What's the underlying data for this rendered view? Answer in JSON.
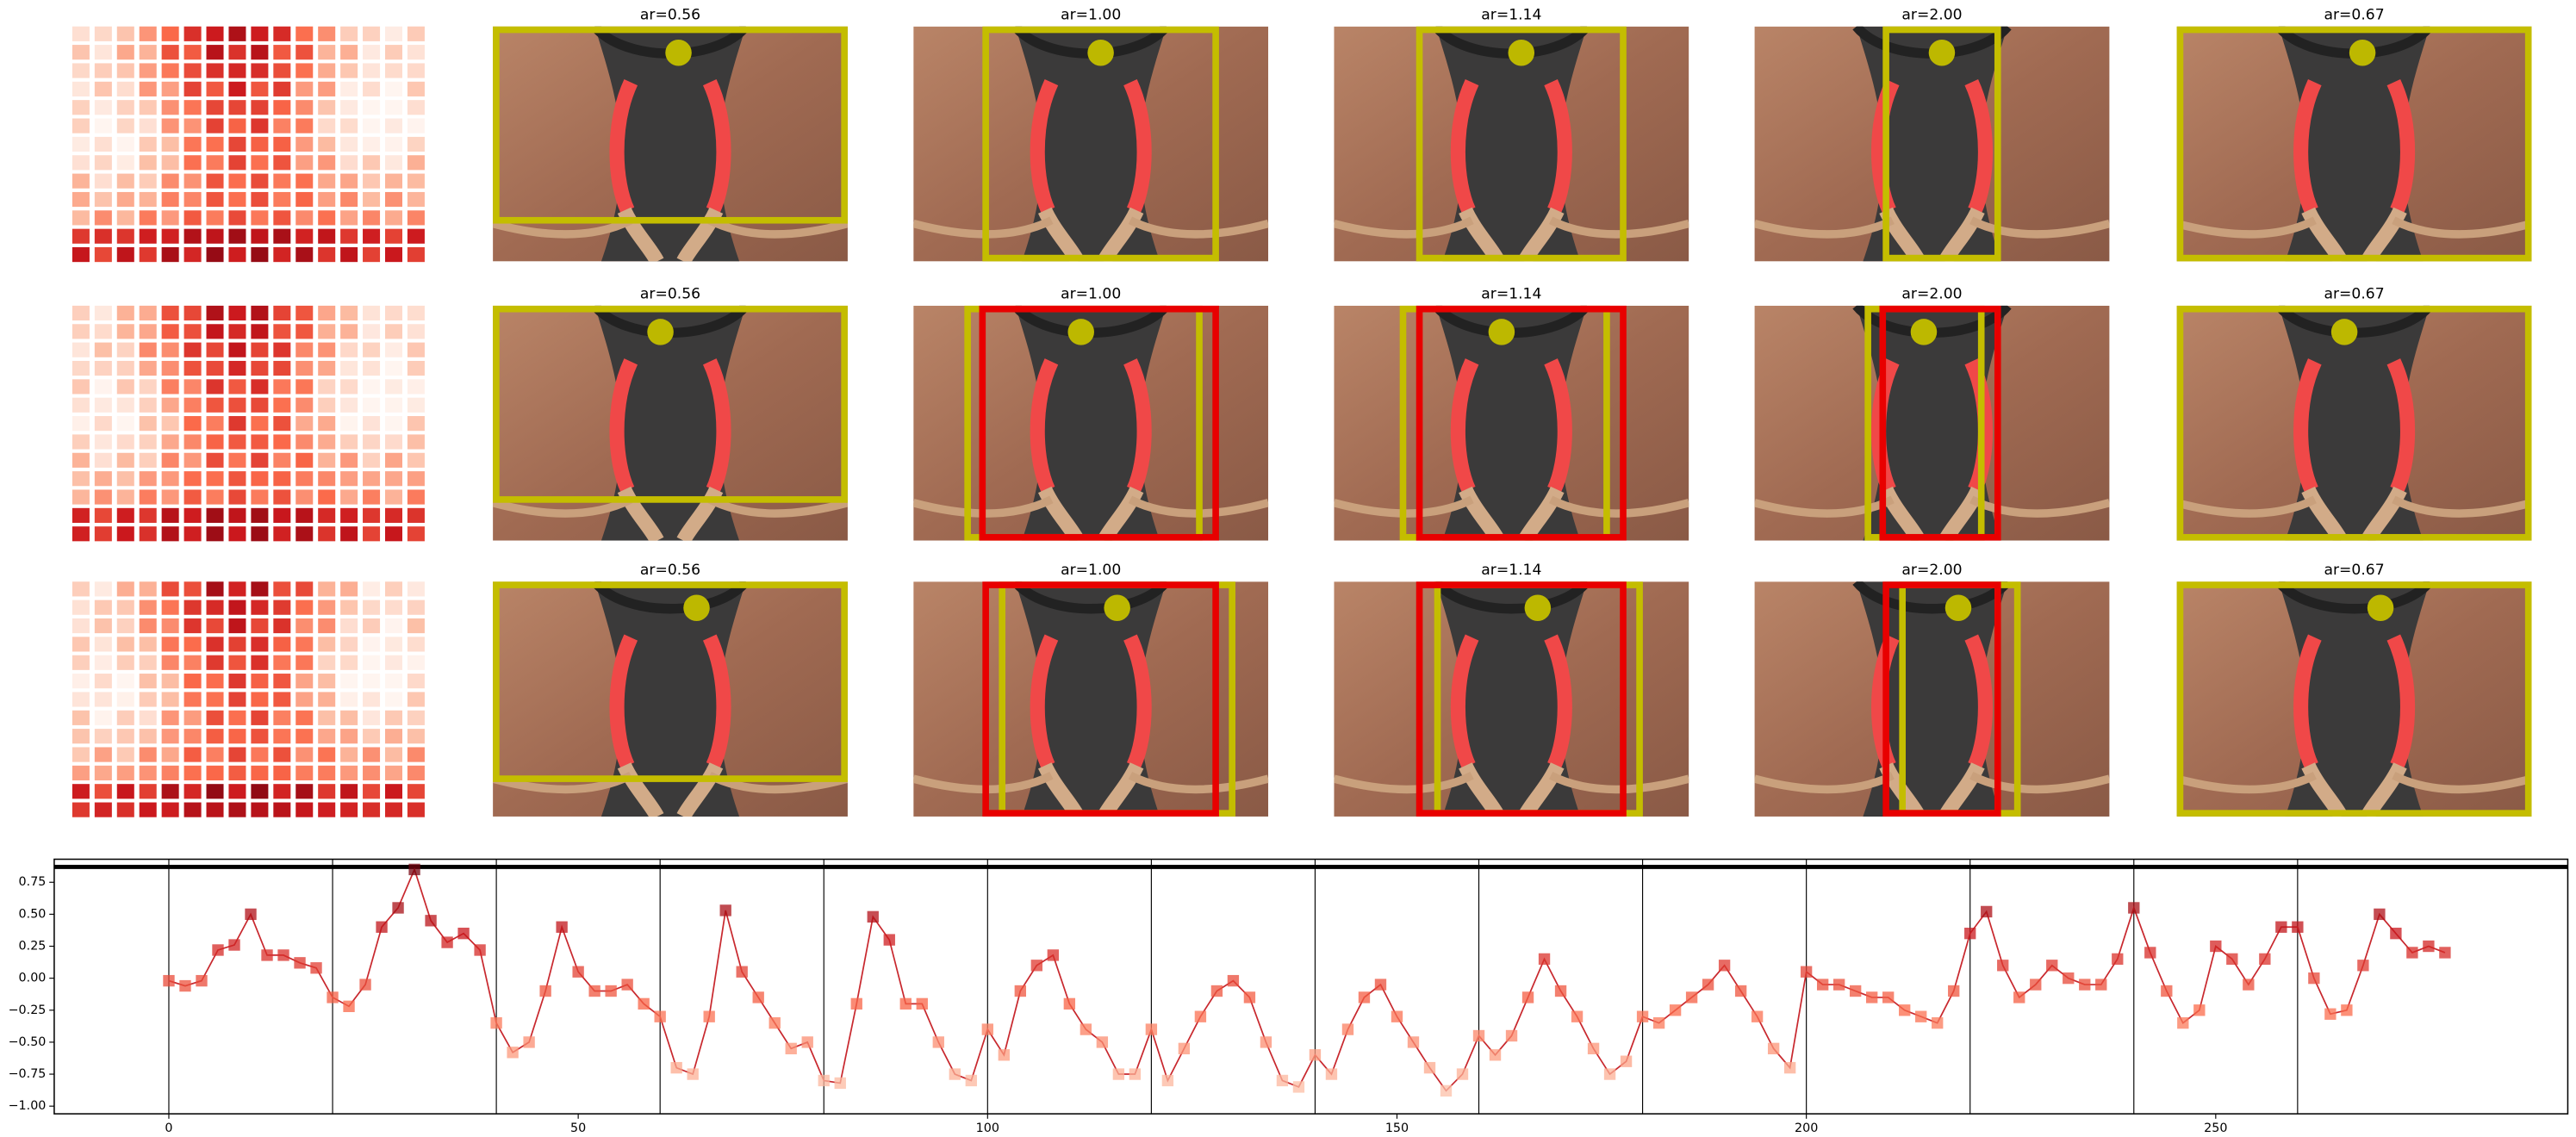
{
  "panels": {
    "titles": [
      [
        "ar=0.56",
        "ar=1.00",
        "ar=1.14",
        "ar=2.00",
        "ar=0.67"
      ],
      [
        "ar=0.56",
        "ar=1.00",
        "ar=1.14",
        "ar=2.00",
        "ar=0.67"
      ],
      [
        "ar=0.56",
        "ar=1.00",
        "ar=1.14",
        "ar=2.00",
        "ar=0.67"
      ]
    ]
  },
  "chart_data": {
    "type": "line",
    "x": [
      0,
      2,
      4,
      6,
      8,
      10,
      12,
      14,
      16,
      18,
      20,
      22,
      24,
      26,
      28,
      30,
      32,
      34,
      36,
      38,
      40,
      42,
      44,
      46,
      48,
      50,
      52,
      54,
      56,
      58,
      60,
      62,
      64,
      66,
      68,
      70,
      72,
      74,
      76,
      78,
      80,
      82,
      84,
      86,
      88,
      90,
      92,
      94,
      96,
      98,
      100,
      102,
      104,
      106,
      108,
      110,
      112,
      114,
      116,
      118,
      120,
      122,
      124,
      126,
      128,
      130,
      132,
      134,
      136,
      138,
      140,
      142,
      144,
      146,
      148,
      150,
      152,
      154,
      156,
      158,
      160,
      162,
      164,
      166,
      168,
      170,
      172,
      174,
      176,
      178,
      180,
      182,
      184,
      186,
      188,
      190,
      192,
      194,
      196,
      198,
      200,
      202,
      204,
      206,
      208,
      210,
      212,
      214,
      216,
      218,
      220,
      222,
      224,
      226,
      228,
      230,
      232,
      234,
      236,
      238,
      240,
      242,
      244,
      246,
      248,
      250,
      252,
      254,
      256,
      258,
      260,
      262,
      264,
      266,
      268,
      270,
      272,
      274,
      276,
      278
    ],
    "series": [
      {
        "color": "#c8282e",
        "values": [
          -0.02,
          -0.06,
          -0.02,
          0.22,
          0.26,
          0.5,
          0.18,
          0.18,
          0.12,
          0.08,
          -0.15,
          -0.22,
          -0.05,
          0.4,
          0.55,
          0.85,
          0.45,
          0.28,
          0.35,
          0.22,
          -0.35,
          -0.58,
          -0.5,
          -0.1,
          0.4,
          0.05,
          -0.1,
          -0.1,
          -0.05,
          -0.2,
          -0.3,
          -0.7,
          -0.75,
          -0.3,
          0.53,
          0.05,
          -0.15,
          -0.35,
          -0.55,
          -0.5,
          -0.8,
          -0.82,
          -0.2,
          0.48,
          0.3,
          -0.2,
          -0.2,
          -0.5,
          -0.75,
          -0.8,
          -0.4,
          -0.6,
          -0.1,
          0.1,
          0.18,
          -0.2,
          -0.4,
          -0.5,
          -0.75,
          -0.75,
          -0.4,
          -0.8,
          -0.55,
          -0.3,
          -0.1,
          -0.02,
          -0.15,
          -0.5,
          -0.8,
          -0.85,
          -0.6,
          -0.75,
          -0.4,
          -0.15,
          -0.05,
          -0.3,
          -0.5,
          -0.7,
          -0.88,
          -0.75,
          -0.45,
          -0.6,
          -0.45,
          -0.15,
          0.15,
          -0.1,
          -0.3,
          -0.55,
          -0.75,
          -0.65,
          -0.3,
          -0.35,
          -0.25,
          -0.15,
          -0.05,
          0.1,
          -0.1,
          -0.3,
          -0.55,
          -0.7,
          0.05,
          -0.05,
          -0.05,
          -0.1,
          -0.15,
          -0.15,
          -0.25,
          -0.3,
          -0.35,
          -0.1,
          0.35,
          0.52,
          0.1,
          -0.15,
          -0.05,
          0.1,
          0.0,
          -0.05,
          -0.05,
          0.15,
          0.55,
          0.2,
          -0.1,
          -0.35,
          -0.25,
          0.25,
          0.15,
          -0.05,
          0.15,
          0.4,
          0.4,
          0.0,
          -0.28,
          -0.25,
          0.1,
          0.5,
          0.35,
          0.2,
          0.25,
          0.2
        ]
      }
    ],
    "marker_cmap": "Reds",
    "xlim": [
      -14,
      293
    ],
    "ylim": [
      -1.06,
      0.93
    ],
    "xticks": [
      0,
      50,
      100,
      150,
      200,
      250
    ],
    "yticks": [
      {
        "value": -1,
        "label": "−1.00"
      },
      {
        "value": -0.75,
        "label": "−0.75"
      },
      {
        "value": -0.5,
        "label": "−0.50"
      },
      {
        "value": -0.25,
        "label": "−0.25"
      },
      {
        "value": 0,
        "label": "0.00"
      },
      0.25,
      {
        "value": 0.5,
        "label": "0.50"
      },
      0.75
    ],
    "vlines": [
      0,
      20,
      40,
      60,
      80,
      100,
      120,
      140,
      160,
      180,
      200,
      220,
      240,
      260
    ],
    "hline": 0.87,
    "grid": false
  }
}
